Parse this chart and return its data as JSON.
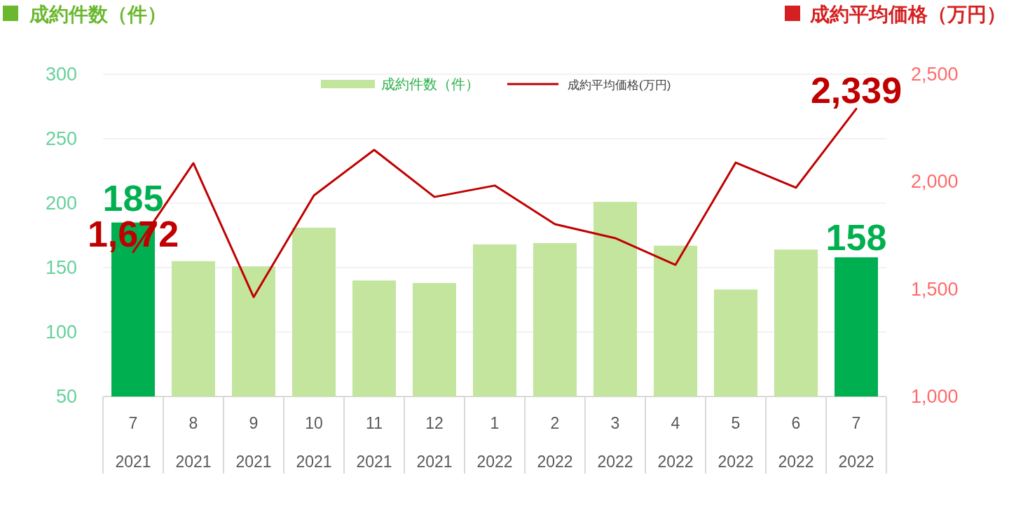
{
  "chart_data": {
    "type": "bar",
    "ylabel": "成約件数（件）",
    "y2label": "成約平均価格（万円）",
    "categories": [
      "7\n2021",
      "8\n2021",
      "9\n2021",
      "10\n2021",
      "11\n2021",
      "12\n2021",
      "1\n2022",
      "2\n2022",
      "3\n2022",
      "4\n2022",
      "5\n2022",
      "6\n2022",
      "7\n2022"
    ],
    "series": [
      {
        "name": "成約件数（件）",
        "color": "#c3e59e",
        "colors": [
          "#00b050",
          "#c3e59e",
          "#c3e59e",
          "#c3e59e",
          "#c3e59e",
          "#c3e59e",
          "#c3e59e",
          "#c3e59e",
          "#c3e59e",
          "#c3e59e",
          "#c3e59e",
          "#c3e59e",
          "#00b050"
        ],
        "values": [
          185,
          155,
          151,
          181,
          140,
          138,
          168,
          169,
          201,
          167,
          133,
          164,
          158
        ],
        "value_labels": [
          "185",
          null,
          null,
          null,
          null,
          null,
          null,
          null,
          null,
          null,
          null,
          null,
          "158"
        ]
      },
      {
        "name": "成約平均価格(万円)",
        "type": "line",
        "axis": "y2",
        "color": "#c00000",
        "values": [
          1672,
          2086,
          1463,
          1936,
          2148,
          1929,
          1982,
          1802,
          1737,
          1613,
          2089,
          1972,
          2339
        ],
        "value_labels": [
          "1,672",
          null,
          null,
          null,
          null,
          null,
          null,
          null,
          null,
          null,
          null,
          null,
          "2,339"
        ]
      }
    ],
    "ylim": [
      50,
      300
    ],
    "yticks": [
      50,
      100,
      150,
      200,
      250,
      300
    ],
    "y2lim": [
      1000,
      2500
    ],
    "y2ticks": [
      {
        "value": 1000,
        "label": "1,000"
      },
      {
        "value": 1500,
        "label": "1,500"
      },
      {
        "value": 2000,
        "label": "2,000"
      },
      {
        "value": 2500,
        "label": "2,500"
      }
    ],
    "grid": "y",
    "legend": "top",
    "marker": "none",
    "line_style": "solid"
  }
}
